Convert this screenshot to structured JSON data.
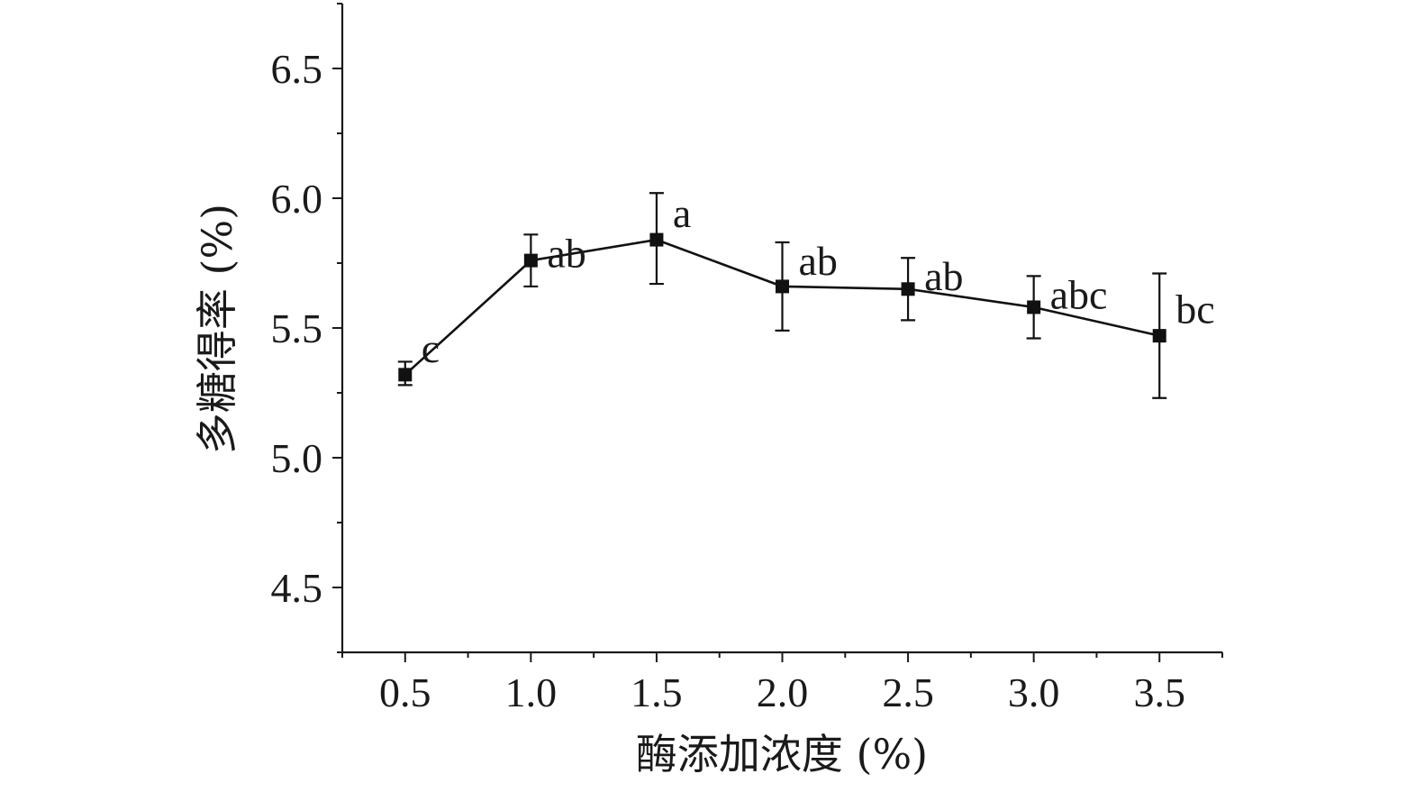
{
  "chart_data": {
    "type": "line",
    "xlabel": "酶添加浓度 (%)",
    "ylabel": "多糖得率 (%)",
    "xlim": [
      0.25,
      3.75
    ],
    "ylim": [
      4.25,
      6.75
    ],
    "x_ticks": [
      0.5,
      1.0,
      1.5,
      2.0,
      2.5,
      3.0,
      3.5
    ],
    "x_tick_labels": [
      "0.5",
      "1.0",
      "1.5",
      "2.0",
      "2.5",
      "3.0",
      "3.5"
    ],
    "y_ticks": [
      4.5,
      5.0,
      5.5,
      6.0,
      6.5
    ],
    "y_tick_labels": [
      "4.5",
      "5.0",
      "5.5",
      "6.0",
      "6.5"
    ],
    "grid": false,
    "marker": "square",
    "series": [
      {
        "x": [
          0.5,
          1.0,
          1.5,
          2.0,
          2.5,
          3.0,
          3.5
        ],
        "y": [
          5.32,
          5.76,
          5.84,
          5.66,
          5.65,
          5.58,
          5.47
        ],
        "err_low": [
          5.28,
          5.66,
          5.67,
          5.49,
          5.53,
          5.46,
          5.23
        ],
        "err_high": [
          5.37,
          5.86,
          6.02,
          5.83,
          5.77,
          5.7,
          5.71
        ],
        "significance_labels": [
          "c",
          "ab",
          "a",
          "ab",
          "ab",
          "abc",
          "bc"
        ]
      }
    ]
  }
}
